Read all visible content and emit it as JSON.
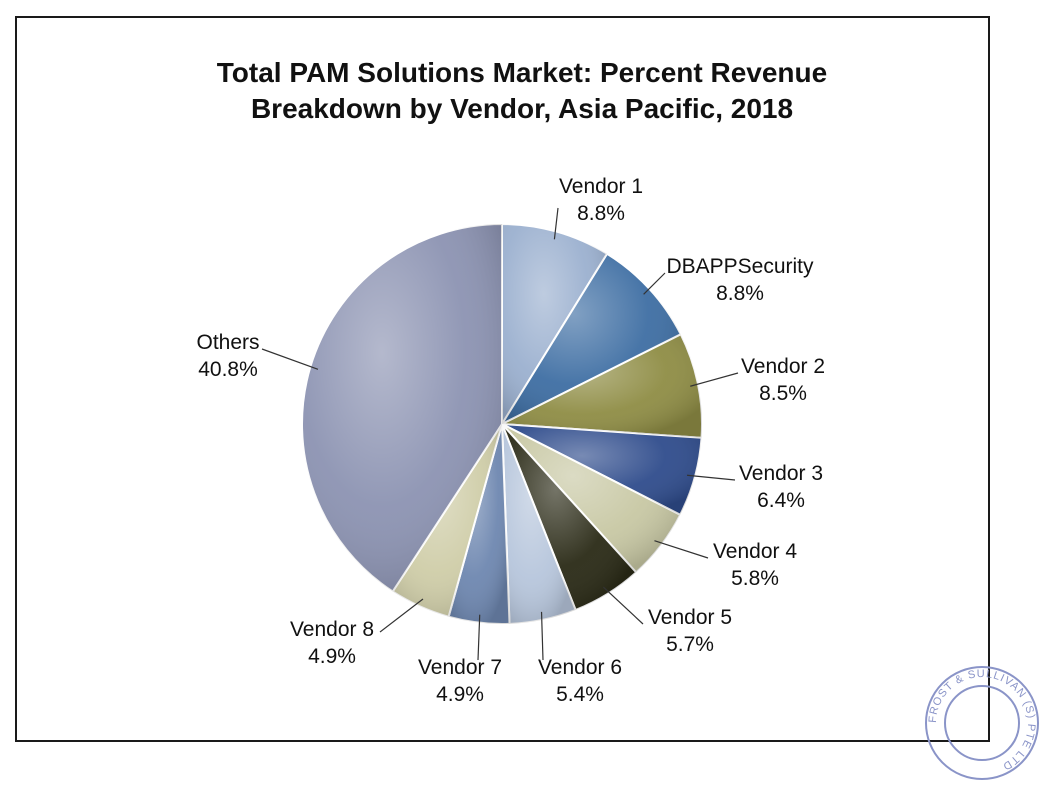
{
  "chart_data": {
    "type": "pie",
    "title": [
      "Total PAM Solutions Market: Percent Revenue",
      "Breakdown by Vendor, Asia Pacific, 2018"
    ],
    "slices": [
      {
        "label": "Vendor 1",
        "value": 8.8,
        "display": "8.8%",
        "color": "#9bb0cf"
      },
      {
        "label": "DBAPPSecurity",
        "value": 8.8,
        "display": "8.8%",
        "color": "#3e6ea3"
      },
      {
        "label": "Vendor 2",
        "value": 8.5,
        "display": "8.5%",
        "color": "#8f8d45"
      },
      {
        "label": "Vendor 3",
        "value": 6.4,
        "display": "6.4%",
        "color": "#2f4c8c"
      },
      {
        "label": "Vendor 4",
        "value": 5.8,
        "display": "5.8%",
        "color": "#c8c8a4"
      },
      {
        "label": "Vendor 5",
        "value": 5.7,
        "display": "5.7%",
        "color": "#2a2a16"
      },
      {
        "label": "Vendor 6",
        "value": 5.4,
        "display": "5.4%",
        "color": "#b7c6dc"
      },
      {
        "label": "Vendor 7",
        "value": 4.9,
        "display": "4.9%",
        "color": "#6e87b0"
      },
      {
        "label": "Vendor 8",
        "value": 4.9,
        "display": "4.9%",
        "color": "#cfcda8"
      },
      {
        "label": "Others",
        "value": 40.8,
        "display": "40.8%",
        "color": "#8c93b2"
      }
    ],
    "start_angle": "12 o'clock",
    "direction": "clockwise",
    "legend": "none (callout labels)"
  },
  "stamp": {
    "text": "FROST & SULLIVAN (S) PTE LTD"
  }
}
